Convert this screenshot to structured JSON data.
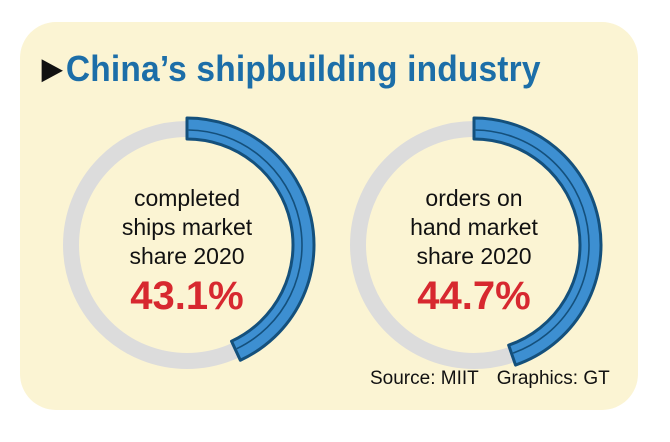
{
  "title": "China’s shipbuilding industry",
  "chart_data": [
    {
      "type": "pie",
      "label_lines": [
        "completed",
        "ships market",
        "share 2020"
      ],
      "value": 43.1,
      "value_label": "43.1%",
      "colors": {
        "fill": "#3d8fd1",
        "track": "#dcdcdc",
        "outline": "#14507c"
      }
    },
    {
      "type": "pie",
      "label_lines": [
        "orders on",
        "hand market",
        "share 2020"
      ],
      "value": 44.7,
      "value_label": "44.7%",
      "colors": {
        "fill": "#3d8fd1",
        "track": "#dcdcdc",
        "outline": "#14507c"
      }
    }
  ],
  "footer": {
    "source": "Source: MIIT",
    "graphics": "Graphics: GT"
  }
}
